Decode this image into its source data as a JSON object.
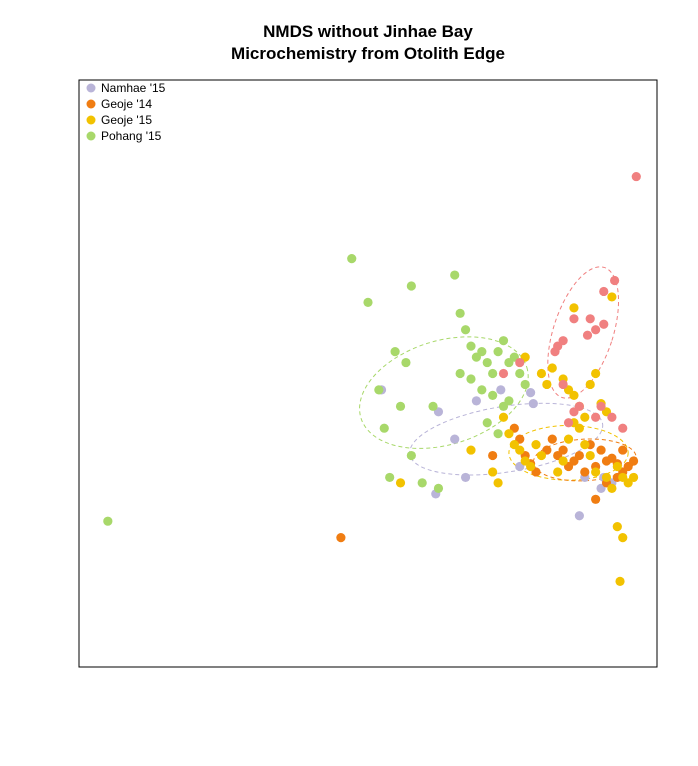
{
  "chart_data": {
    "type": "scatter",
    "title": "NMDS without Jinhae Bay",
    "subtitle": "Microchemistry from Otolith Edge",
    "xlabel": "",
    "ylabel": "",
    "xlim": [
      0,
      1
    ],
    "ylim": [
      0,
      1
    ],
    "axes_ticks": false,
    "grid": false,
    "legend_position": "top-left",
    "series": [
      {
        "name": "Namhae '15",
        "color": "#B9B4D8",
        "points": [
          [
            0.525,
            0.47
          ],
          [
            0.63,
            0.43
          ],
          [
            0.66,
            0.38
          ],
          [
            0.7,
            0.45
          ],
          [
            0.745,
            0.47
          ],
          [
            0.8,
            0.465
          ],
          [
            0.805,
            0.445
          ],
          [
            0.78,
            0.33
          ],
          [
            0.625,
            0.28
          ],
          [
            0.68,
            0.31
          ],
          [
            0.9,
            0.31
          ],
          [
            0.93,
            0.29
          ],
          [
            0.935,
            0.31
          ],
          [
            0.95,
            0.3
          ],
          [
            0.89,
            0.24
          ]
        ]
      },
      {
        "name": "Geoje '14",
        "color": "#F07D12",
        "points": [
          [
            0.45,
            0.2
          ],
          [
            0.73,
            0.35
          ],
          [
            0.77,
            0.4
          ],
          [
            0.78,
            0.38
          ],
          [
            0.79,
            0.35
          ],
          [
            0.8,
            0.335
          ],
          [
            0.81,
            0.32
          ],
          [
            0.83,
            0.36
          ],
          [
            0.84,
            0.38
          ],
          [
            0.85,
            0.35
          ],
          [
            0.86,
            0.36
          ],
          [
            0.87,
            0.33
          ],
          [
            0.88,
            0.34
          ],
          [
            0.89,
            0.35
          ],
          [
            0.9,
            0.32
          ],
          [
            0.91,
            0.37
          ],
          [
            0.92,
            0.33
          ],
          [
            0.93,
            0.36
          ],
          [
            0.94,
            0.34
          ],
          [
            0.95,
            0.345
          ],
          [
            0.96,
            0.335
          ],
          [
            0.97,
            0.36
          ],
          [
            0.98,
            0.33
          ],
          [
            0.99,
            0.34
          ],
          [
            0.97,
            0.32
          ],
          [
            0.94,
            0.3
          ],
          [
            0.92,
            0.27
          ],
          [
            0.96,
            0.31
          ]
        ]
      },
      {
        "name": "Geoje '15",
        "color": "#F2C200",
        "points": [
          [
            0.88,
            0.62
          ],
          [
            0.79,
            0.53
          ],
          [
            0.82,
            0.5
          ],
          [
            0.83,
            0.48
          ],
          [
            0.84,
            0.51
          ],
          [
            0.86,
            0.49
          ],
          [
            0.87,
            0.47
          ],
          [
            0.88,
            0.46
          ],
          [
            0.89,
            0.44
          ],
          [
            0.9,
            0.42
          ],
          [
            0.91,
            0.48
          ],
          [
            0.92,
            0.5
          ],
          [
            0.93,
            0.445
          ],
          [
            0.94,
            0.43
          ],
          [
            0.75,
            0.42
          ],
          [
            0.76,
            0.39
          ],
          [
            0.77,
            0.37
          ],
          [
            0.78,
            0.36
          ],
          [
            0.79,
            0.34
          ],
          [
            0.8,
            0.33
          ],
          [
            0.81,
            0.37
          ],
          [
            0.82,
            0.35
          ],
          [
            0.85,
            0.32
          ],
          [
            0.86,
            0.34
          ],
          [
            0.87,
            0.38
          ],
          [
            0.88,
            0.41
          ],
          [
            0.89,
            0.4
          ],
          [
            0.9,
            0.37
          ],
          [
            0.91,
            0.35
          ],
          [
            0.92,
            0.32
          ],
          [
            0.94,
            0.31
          ],
          [
            0.95,
            0.29
          ],
          [
            0.96,
            0.33
          ],
          [
            0.97,
            0.31
          ],
          [
            0.98,
            0.3
          ],
          [
            0.99,
            0.31
          ],
          [
            0.73,
            0.32
          ],
          [
            0.74,
            0.3
          ],
          [
            0.69,
            0.36
          ],
          [
            0.95,
            0.64
          ],
          [
            0.96,
            0.22
          ],
          [
            0.97,
            0.2
          ],
          [
            0.965,
            0.12
          ],
          [
            0.56,
            0.3
          ]
        ]
      },
      {
        "name": "Pohang '15",
        "color": "#A8D86A",
        "points": [
          [
            0.02,
            0.23
          ],
          [
            0.47,
            0.71
          ],
          [
            0.5,
            0.63
          ],
          [
            0.58,
            0.66
          ],
          [
            0.66,
            0.68
          ],
          [
            0.67,
            0.61
          ],
          [
            0.68,
            0.58
          ],
          [
            0.69,
            0.55
          ],
          [
            0.7,
            0.53
          ],
          [
            0.71,
            0.54
          ],
          [
            0.72,
            0.52
          ],
          [
            0.73,
            0.5
          ],
          [
            0.74,
            0.54
          ],
          [
            0.75,
            0.56
          ],
          [
            0.76,
            0.52
          ],
          [
            0.77,
            0.53
          ],
          [
            0.78,
            0.5
          ],
          [
            0.55,
            0.54
          ],
          [
            0.57,
            0.52
          ],
          [
            0.52,
            0.47
          ],
          [
            0.56,
            0.44
          ],
          [
            0.62,
            0.44
          ],
          [
            0.69,
            0.49
          ],
          [
            0.71,
            0.47
          ],
          [
            0.73,
            0.46
          ],
          [
            0.75,
            0.44
          ],
          [
            0.79,
            0.48
          ],
          [
            0.54,
            0.31
          ],
          [
            0.58,
            0.35
          ],
          [
            0.6,
            0.3
          ],
          [
            0.63,
            0.29
          ],
          [
            0.67,
            0.5
          ],
          [
            0.72,
            0.41
          ],
          [
            0.76,
            0.45
          ],
          [
            0.53,
            0.4
          ],
          [
            0.74,
            0.39
          ]
        ]
      },
      {
        "name": "",
        "color": "#F08080",
        "points": [
          [
            0.995,
            0.86
          ],
          [
            0.955,
            0.67
          ],
          [
            0.935,
            0.65
          ],
          [
            0.91,
            0.6
          ],
          [
            0.92,
            0.58
          ],
          [
            0.935,
            0.59
          ],
          [
            0.905,
            0.57
          ],
          [
            0.88,
            0.6
          ],
          [
            0.86,
            0.56
          ],
          [
            0.85,
            0.55
          ],
          [
            0.845,
            0.54
          ],
          [
            0.86,
            0.48
          ],
          [
            0.87,
            0.41
          ],
          [
            0.88,
            0.43
          ],
          [
            0.89,
            0.44
          ],
          [
            0.92,
            0.42
          ],
          [
            0.93,
            0.44
          ],
          [
            0.95,
            0.42
          ],
          [
            0.97,
            0.4
          ],
          [
            0.78,
            0.52
          ],
          [
            0.75,
            0.5
          ]
        ]
      }
    ],
    "ellipses": [
      {
        "color": "#F08080",
        "cx": 0.897,
        "cy": 0.575,
        "rx": 0.055,
        "ry": 0.125,
        "rotate": 18
      },
      {
        "color": "#B9B4D8",
        "cx": 0.755,
        "cy": 0.38,
        "rx": 0.18,
        "ry": 0.06,
        "rotate": -9
      },
      {
        "color": "#F2C200",
        "cx": 0.87,
        "cy": 0.355,
        "rx": 0.11,
        "ry": 0.05,
        "rotate": 0
      },
      {
        "color": "#F07D12",
        "cx": 0.9,
        "cy": 0.342,
        "rx": 0.095,
        "ry": 0.038,
        "rotate": -3
      },
      {
        "color": "#A8D86A",
        "cx": 0.64,
        "cy": 0.465,
        "rx": 0.16,
        "ry": 0.095,
        "rotate": -17
      }
    ]
  }
}
